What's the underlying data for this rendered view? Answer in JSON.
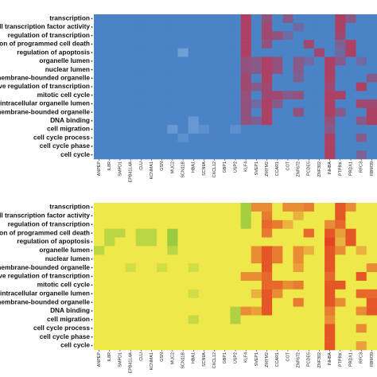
{
  "chart_data": [
    {
      "type": "heatmap",
      "rows": [
        "transcription",
        "e II transcription factor activity",
        "regulation of transcription",
        "tion of programmed cell death",
        "regulation of apoptosis",
        "organelle lumen",
        "nuclear lumen",
        "membrane-bounded organelle",
        "tive regulation of transcription",
        "mitotic cell cycle",
        "intracellular organelle lumen",
        "membrane-bounded organelle",
        "DNA binding",
        "cell migration",
        "cell cycle process",
        "cell cycle phase",
        "cell cycle"
      ],
      "columns": [
        "ANPEP",
        "IL8R",
        "SMPD1",
        "EPB41L4A",
        "CLU",
        "KCNMA1",
        "GSN",
        "MUC2",
        "SCN11B",
        "HBA1",
        "SCN9A",
        "CXCL12",
        "GBP1",
        "USP2",
        "KLF4",
        "SVEP1",
        "ZMYM2",
        "CCAR1",
        "COT",
        "ZNF672",
        "PCDE5",
        "ZNF302",
        "INHBA",
        "PTPRK",
        "PRDX1",
        "RFC3",
        "RBM39"
      ],
      "zlim": [
        -1,
        1
      ],
      "colors": {
        "low": "#a9c8ea",
        "mid": "#4a83c6",
        "high": "#c4304c"
      },
      "values": [
        [
          0,
          0,
          0,
          0,
          0,
          0,
          0,
          0,
          0,
          0,
          0,
          0,
          0,
          0,
          0.8,
          0,
          0.6,
          0,
          0.5,
          0,
          0,
          0,
          0,
          0.8,
          0.5,
          0,
          0
        ],
        [
          0,
          0,
          0,
          0,
          0,
          0,
          0,
          0,
          0,
          0,
          0,
          0,
          0,
          0,
          0.8,
          0,
          0.7,
          0,
          0,
          0.3,
          0,
          0,
          0,
          0.8,
          0,
          0,
          0
        ],
        [
          0,
          0,
          0,
          0,
          0,
          0,
          0,
          0,
          0,
          0,
          0,
          0,
          0,
          0,
          0.8,
          0,
          0.7,
          0.6,
          0.3,
          0,
          0,
          0,
          0,
          0.7,
          0,
          0,
          0
        ],
        [
          0,
          0,
          0,
          0,
          0,
          0,
          0,
          0,
          0,
          0,
          0,
          0,
          0,
          0,
          0.8,
          0,
          0.6,
          0,
          0,
          0,
          0.7,
          0,
          0,
          0.4,
          0.8,
          0,
          0
        ],
        [
          0,
          0,
          0,
          0,
          0,
          0,
          0,
          0,
          -0.4,
          0,
          0,
          0,
          0,
          0,
          0.8,
          0,
          0,
          0,
          0,
          0,
          0,
          0.7,
          0,
          0.3,
          0.8,
          0,
          0
        ],
        [
          0,
          0,
          0,
          0,
          0,
          0,
          0,
          0,
          0,
          0,
          0,
          0,
          0,
          0,
          0.6,
          0.5,
          0.8,
          0.6,
          0,
          0.5,
          0.3,
          0,
          0.8,
          0.5,
          0,
          0.3,
          0
        ],
        [
          0,
          0,
          0,
          0,
          0,
          0,
          0,
          0,
          0,
          0,
          0,
          0,
          0,
          0,
          0.6,
          0.5,
          0.8,
          0.6,
          0,
          0.5,
          0,
          0,
          0.8,
          0,
          0,
          0,
          0
        ],
        [
          0,
          0,
          0,
          0,
          0,
          0,
          0,
          0,
          0,
          0,
          0,
          0,
          0,
          0,
          0.7,
          0,
          0.8,
          0,
          0,
          0.4,
          0,
          0,
          0.8,
          0,
          0,
          0,
          0.5
        ],
        [
          0,
          0,
          0,
          0,
          0,
          0,
          0,
          0,
          0,
          0,
          0,
          0,
          0,
          0,
          0.7,
          0.5,
          0.7,
          0,
          0,
          0,
          0,
          0,
          0.7,
          0,
          0,
          0.8,
          0
        ],
        [
          0,
          0,
          0,
          0,
          0,
          0,
          0,
          0,
          0,
          0,
          0,
          0,
          0,
          0,
          0.6,
          0,
          0.7,
          0.7,
          0.5,
          0.6,
          0,
          0,
          0.8,
          0.8,
          0,
          0,
          0
        ],
        [
          0,
          0,
          0,
          0,
          0,
          0,
          0,
          0,
          0,
          0,
          0,
          0,
          0,
          0,
          0.6,
          0.3,
          0.8,
          0.5,
          0,
          0,
          0,
          0,
          0.8,
          0,
          0,
          0.7,
          0.7
        ],
        [
          0,
          0,
          0,
          0,
          0,
          0,
          0,
          0,
          0,
          0,
          0,
          0,
          0,
          0,
          0.6,
          0,
          0.8,
          0,
          0,
          0.6,
          0,
          0,
          0.8,
          0.5,
          0,
          0,
          0.8
        ],
        [
          0,
          0,
          0,
          0,
          0,
          0,
          0,
          0,
          0,
          -0.3,
          0,
          0,
          0,
          0,
          0.6,
          0.4,
          0.8,
          0,
          0,
          0,
          0,
          0,
          0.6,
          0,
          0,
          0.5,
          0.8
        ],
        [
          0,
          0,
          0,
          0,
          0,
          0,
          0,
          -0.3,
          0,
          -0.3,
          -0.2,
          0,
          0,
          -0.2,
          0,
          0,
          0,
          0,
          0,
          0,
          0,
          0,
          0.5,
          0,
          0,
          0,
          0
        ],
        [
          0,
          0,
          0,
          0,
          0,
          0,
          0,
          0,
          -0.2,
          0,
          0,
          0,
          0,
          0,
          0,
          0,
          0,
          0,
          0,
          0,
          0,
          0,
          0.8,
          0,
          0,
          0.5,
          0
        ],
        [
          0,
          0,
          0,
          0,
          0,
          0,
          0,
          0,
          0,
          0,
          0,
          0,
          0,
          0,
          0,
          0,
          0,
          0,
          0,
          0,
          0,
          0,
          0.8,
          0,
          0,
          0,
          0
        ],
        [
          0,
          0,
          0,
          0,
          0,
          0,
          0,
          0,
          0,
          0,
          0,
          0,
          0,
          0,
          0,
          0,
          0,
          0,
          0,
          0,
          0,
          0,
          0.8,
          0,
          0,
          0.4,
          0
        ]
      ]
    },
    {
      "type": "heatmap",
      "rows": [
        "transcription",
        "e II transcription factor activity",
        "regulation of transcription",
        "tion of programmed cell death",
        "regulation of apoptosis",
        "organelle lumen",
        "nuclear lumen",
        "membrane-bounded organelle",
        "tive regulation of transcription",
        "mitotic cell cycle",
        "intracellular organelle lumen",
        "membrane-bounded organelle",
        "DNA binding",
        "cell migration",
        "cell cycle process",
        "cell cycle phase",
        "cell cycle"
      ],
      "columns": [
        "ANPEP",
        "IL8R",
        "SMPD1",
        "EPB41L4A",
        "CLU",
        "KCNMA1",
        "GSN",
        "MUC2",
        "SCN11B",
        "HBA1",
        "SCN9A",
        "CXCL12",
        "GBP1",
        "USP2",
        "KLF4",
        "SVEP1",
        "ZMYM2",
        "CCAR1",
        "COT",
        "ZNF672",
        "PCDE5",
        "ZNF302",
        "INHBA",
        "PTPRK",
        "PRDX1",
        "RFC3",
        "RBM39"
      ],
      "zlim": [
        -1,
        1
      ],
      "colors": {
        "low": "#86c43c",
        "mid": "#efe84a",
        "high": "#e2321e"
      },
      "values": [
        [
          0,
          0,
          0,
          0,
          0,
          0,
          0,
          0,
          0,
          0,
          0,
          0,
          0,
          0,
          -0.7,
          0.5,
          0.5,
          0,
          0.5,
          0.5,
          0.6,
          0,
          0,
          0.8,
          0.5,
          0,
          0
        ],
        [
          0,
          0,
          0,
          0,
          0,
          0,
          0,
          0,
          0,
          0,
          0,
          0,
          0,
          0,
          -0.7,
          0,
          0.6,
          0,
          0,
          0.3,
          0,
          0,
          0,
          0.8,
          0,
          0,
          0
        ],
        [
          0,
          0,
          0,
          0,
          0,
          0,
          0,
          0,
          0,
          0,
          0,
          0,
          0,
          0,
          -0.7,
          0,
          0.7,
          0.6,
          0.3,
          0,
          0,
          0,
          0.5,
          0.7,
          0,
          0,
          0
        ],
        [
          0,
          -0.5,
          -0.5,
          0,
          -0.5,
          -0.5,
          0,
          -0.8,
          0,
          0,
          0,
          0,
          0,
          0,
          0,
          0,
          0.6,
          0,
          0,
          0,
          0.7,
          0,
          0.8,
          0.4,
          0.8,
          0,
          0
        ],
        [
          0,
          -0.5,
          0,
          0,
          -0.5,
          -0.5,
          0,
          -0.8,
          0,
          0,
          0,
          0,
          0,
          0,
          0,
          0,
          0,
          0,
          0,
          0,
          0,
          0,
          0.9,
          0.3,
          0.8,
          0,
          0
        ],
        [
          -0.5,
          0,
          0,
          0,
          0,
          0,
          0,
          -0.5,
          0,
          0,
          0,
          0,
          0,
          0,
          0,
          0.5,
          0.8,
          0.6,
          0,
          0.5,
          0.3,
          0,
          0.8,
          0.5,
          0,
          0.3,
          0
        ],
        [
          0,
          0,
          0,
          0,
          0,
          0,
          0,
          0,
          0,
          0,
          0,
          0,
          0,
          0,
          0,
          0.5,
          0.8,
          0.6,
          0,
          0.5,
          0,
          0,
          0.8,
          0,
          0,
          0,
          0
        ],
        [
          0,
          0,
          0,
          -0.3,
          0,
          0,
          -0.3,
          0,
          0,
          -0.3,
          0,
          0,
          0,
          0,
          0,
          0,
          0.8,
          0,
          0,
          0.4,
          0,
          0,
          0.8,
          0,
          0,
          0,
          0.5
        ],
        [
          0,
          0,
          0,
          0,
          0,
          0,
          0,
          0,
          0,
          0,
          0,
          0,
          0,
          0,
          0.5,
          0.5,
          0.7,
          0,
          0,
          0,
          0,
          0,
          0.7,
          0,
          0,
          0.8,
          0
        ],
        [
          0,
          0,
          0,
          0,
          0,
          0,
          0,
          0,
          0,
          0,
          0,
          0,
          0,
          0,
          0,
          0,
          0.7,
          0.7,
          0.5,
          0.6,
          0,
          0,
          0.8,
          0.8,
          0,
          0,
          0
        ],
        [
          0,
          0,
          0,
          0,
          0,
          0,
          0,
          0,
          0,
          -0.3,
          0,
          0,
          0,
          0,
          0,
          0.3,
          0.8,
          0.5,
          0,
          0,
          0,
          0,
          0.8,
          0,
          0,
          0.7,
          0.7
        ],
        [
          0,
          0,
          0,
          0,
          0,
          0,
          0,
          0,
          0,
          0,
          0,
          0,
          0,
          0,
          0,
          0,
          0.8,
          0,
          0,
          0.6,
          0,
          0,
          0.8,
          0.5,
          0,
          0,
          0.8
        ],
        [
          0,
          0,
          0,
          0,
          0,
          0,
          0,
          0,
          0,
          0,
          0,
          0,
          0,
          -0.6,
          0.5,
          0.4,
          0.8,
          0,
          0,
          0,
          0,
          0,
          0.6,
          0,
          0,
          0.5,
          0.8
        ],
        [
          0,
          0,
          0,
          0,
          0,
          0,
          0,
          0,
          0,
          -0.4,
          0,
          0,
          0,
          -0.6,
          0,
          0,
          0,
          0,
          0,
          0,
          0,
          0,
          0.5,
          0,
          0,
          0,
          0
        ],
        [
          0,
          0,
          0,
          0,
          0,
          0,
          0,
          0,
          0,
          0,
          0,
          0,
          0,
          0,
          0,
          0,
          0,
          0,
          0,
          0,
          0,
          0,
          0.8,
          0,
          0,
          0.5,
          0
        ],
        [
          0,
          0,
          0,
          0,
          0,
          0,
          0,
          0,
          0,
          0,
          0,
          0,
          0,
          0,
          0,
          0,
          0,
          0,
          0,
          0,
          0,
          0,
          0.8,
          0,
          0,
          0,
          0
        ],
        [
          0,
          0,
          0,
          0,
          0,
          0,
          0,
          0,
          0,
          0,
          0,
          0,
          0,
          0,
          0,
          0,
          0,
          0,
          0,
          0,
          0,
          0,
          0.8,
          0,
          0,
          0.4,
          0
        ]
      ]
    }
  ]
}
